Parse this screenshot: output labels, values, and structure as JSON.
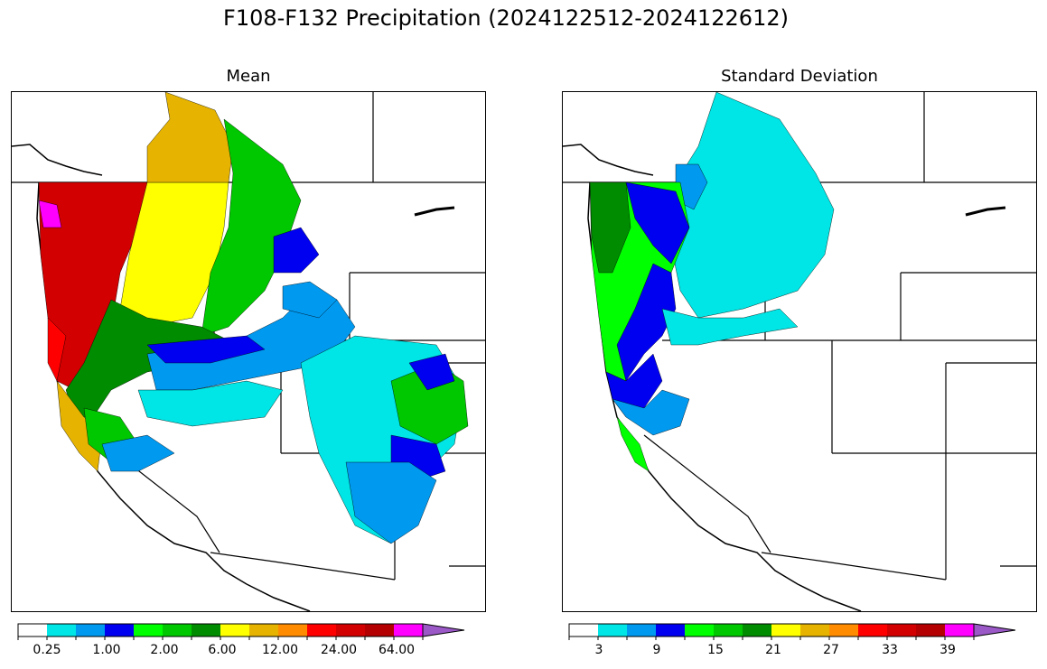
{
  "title": "F108-F132 Precipitation (2024122512-2024122612)",
  "panels": [
    {
      "title": "Mean",
      "colorbar": {
        "colors": [
          "#ffffff",
          "#00e5e5",
          "#0099f0",
          "#0000f0",
          "#00ff00",
          "#00c800",
          "#008c00",
          "#ffff00",
          "#e6b400",
          "#ff8c00",
          "#ff0000",
          "#d20000",
          "#b40000",
          "#ff00ff",
          "#9b59c8"
        ],
        "tick_labels": [
          "0.25",
          "1.00",
          "2.00",
          "6.00",
          "12.00",
          "24.00",
          "64.00"
        ],
        "extend": "max"
      }
    },
    {
      "title": "Standard Deviation",
      "colorbar": {
        "colors": [
          "#ffffff",
          "#00e5e5",
          "#0099f0",
          "#0000f0",
          "#00ff00",
          "#00c800",
          "#008c00",
          "#ffff00",
          "#e6b400",
          "#ff8c00",
          "#ff0000",
          "#d20000",
          "#b40000",
          "#ff00ff",
          "#9b59c8"
        ],
        "tick_labels": [
          "3",
          "9",
          "15",
          "21",
          "27",
          "33",
          "39"
        ],
        "extend": "max"
      }
    }
  ]
}
